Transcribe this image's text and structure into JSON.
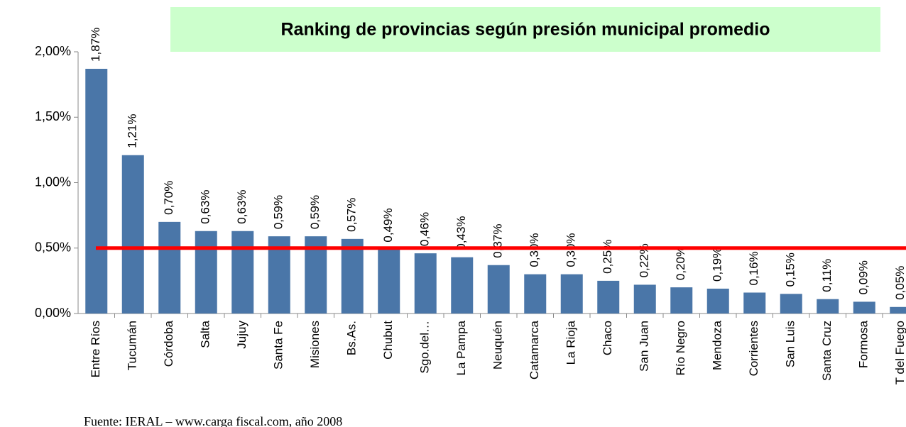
{
  "chart_data": {
    "type": "bar",
    "title": "Ranking de provincias según presión municipal promedio",
    "source": "Fuente: IERAL – www.carga fiscal.com, año 2008",
    "categories": [
      "Entre Ríos",
      "Tucumán",
      "Córdoba",
      "Salta",
      "Jujuy",
      "Santa Fe",
      "Misiones",
      "Bs.As.",
      "Chubut",
      "Sgo.del…",
      "La Pampa",
      "Neuquén",
      "Catamarca",
      "La Rioja",
      "Chaco",
      "San Juan",
      "Río Negro",
      "Mendoza",
      "Corrientes",
      "San Luis",
      "Santa Cruz",
      "Formosa",
      "T del Fuego"
    ],
    "values": [
      1.87,
      1.21,
      0.7,
      0.63,
      0.63,
      0.59,
      0.59,
      0.57,
      0.49,
      0.46,
      0.43,
      0.37,
      0.3,
      0.3,
      0.25,
      0.22,
      0.2,
      0.19,
      0.16,
      0.15,
      0.11,
      0.09,
      0.05
    ],
    "value_labels": [
      "1,87%",
      "1,21%",
      "0,70%",
      "0,63%",
      "0,63%",
      "0,59%",
      "0,59%",
      "0,57%",
      "0,49%",
      "0,46%",
      "0,43%",
      "0,37%",
      "0,30%",
      "0,30%",
      "0,25%",
      "0,22%",
      "0,20%",
      "0,19%",
      "0,16%",
      "0,15%",
      "0,11%",
      "0,09%",
      "0,05%"
    ],
    "color": "#4a76a8",
    "reference_line": {
      "value": 0.5,
      "color": "#ff0000"
    },
    "ylim": [
      0,
      2
    ],
    "yticks": [
      {
        "value": 0,
        "label": "0,00%"
      },
      {
        "value": 0.5,
        "label": "0,50%"
      },
      {
        "value": 1,
        "label": "1,00%"
      },
      {
        "value": 1.5,
        "label": "1,50%"
      },
      {
        "value": 2,
        "label": "2,00%"
      }
    ],
    "grid": false
  }
}
